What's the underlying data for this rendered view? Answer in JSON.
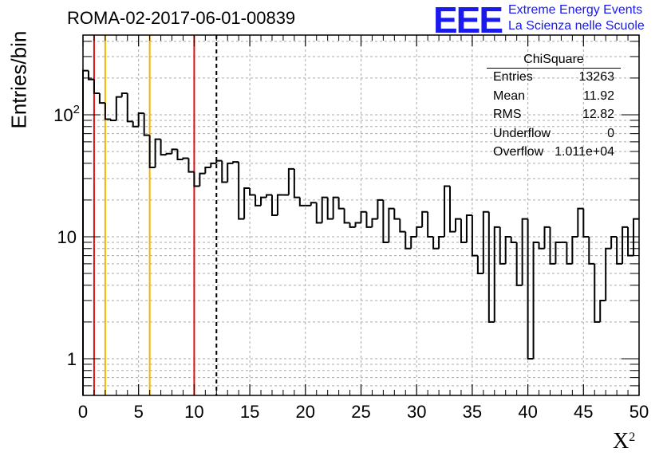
{
  "header": {
    "title": "ROMA-02-2017-06-01-00839"
  },
  "logo": {
    "mark": "EEE",
    "line1": "Extreme Energy Events",
    "line2": "La Scienza nelle Scuole",
    "color": "#1a1aee"
  },
  "stats_box": {
    "title": "ChiSquare",
    "rows": [
      {
        "key": "Entries",
        "value": "13263"
      },
      {
        "key": "Mean",
        "value": "11.92"
      },
      {
        "key": "RMS",
        "value": "12.82"
      },
      {
        "key": "Underflow",
        "value": "0"
      },
      {
        "key": "Overflow",
        "value": "1.011e+04"
      }
    ]
  },
  "chart_data": {
    "type": "histogram",
    "title": "ROMA-02-2017-06-01-00839",
    "xlabel": "X",
    "xlabel_superscript": "2",
    "ylabel": "Entries/bin",
    "xlim": [
      0,
      50
    ],
    "ylim": [
      0.5,
      450
    ],
    "yscale": "log",
    "grid": true,
    "bin_width": 0.5,
    "x_ticks": [
      "0",
      "5",
      "10",
      "15",
      "20",
      "25",
      "30",
      "35",
      "40",
      "45",
      "50"
    ],
    "y_tick_labels": [
      {
        "value": 1,
        "label": "1"
      },
      {
        "value": 10,
        "label": "10"
      },
      {
        "value": 100,
        "label": "10^2"
      }
    ],
    "values": [
      230,
      195,
      150,
      125,
      92,
      90,
      140,
      150,
      88,
      80,
      103,
      68,
      37,
      63,
      47,
      48,
      52,
      43,
      44,
      34,
      26,
      33,
      37,
      40,
      42,
      28,
      40,
      41,
      14,
      25,
      22,
      18,
      21,
      22,
      15,
      22,
      22,
      36,
      21,
      18,
      18,
      19,
      13,
      21,
      14,
      21,
      17,
      13,
      12,
      13,
      16,
      12,
      14,
      20,
      9,
      17,
      14,
      11,
      8,
      10,
      12,
      16,
      10,
      8,
      10,
      26,
      11,
      14,
      9,
      15,
      7,
      5,
      16,
      2,
      12,
      6,
      10,
      9,
      4,
      14,
      1,
      9,
      8,
      12,
      6,
      9,
      9,
      6,
      10,
      17,
      10,
      6,
      2,
      3,
      8,
      10,
      6,
      12,
      7,
      14
    ],
    "vertical_lines": [
      {
        "x": 1,
        "color": "#dd1111",
        "style": "solid"
      },
      {
        "x": 2,
        "color": "#f0b400",
        "style": "solid"
      },
      {
        "x": 6,
        "color": "#f0b400",
        "style": "solid"
      },
      {
        "x": 10,
        "color": "#dd1111",
        "style": "solid"
      },
      {
        "x": 12,
        "color": "#000000",
        "style": "dashed"
      }
    ]
  }
}
